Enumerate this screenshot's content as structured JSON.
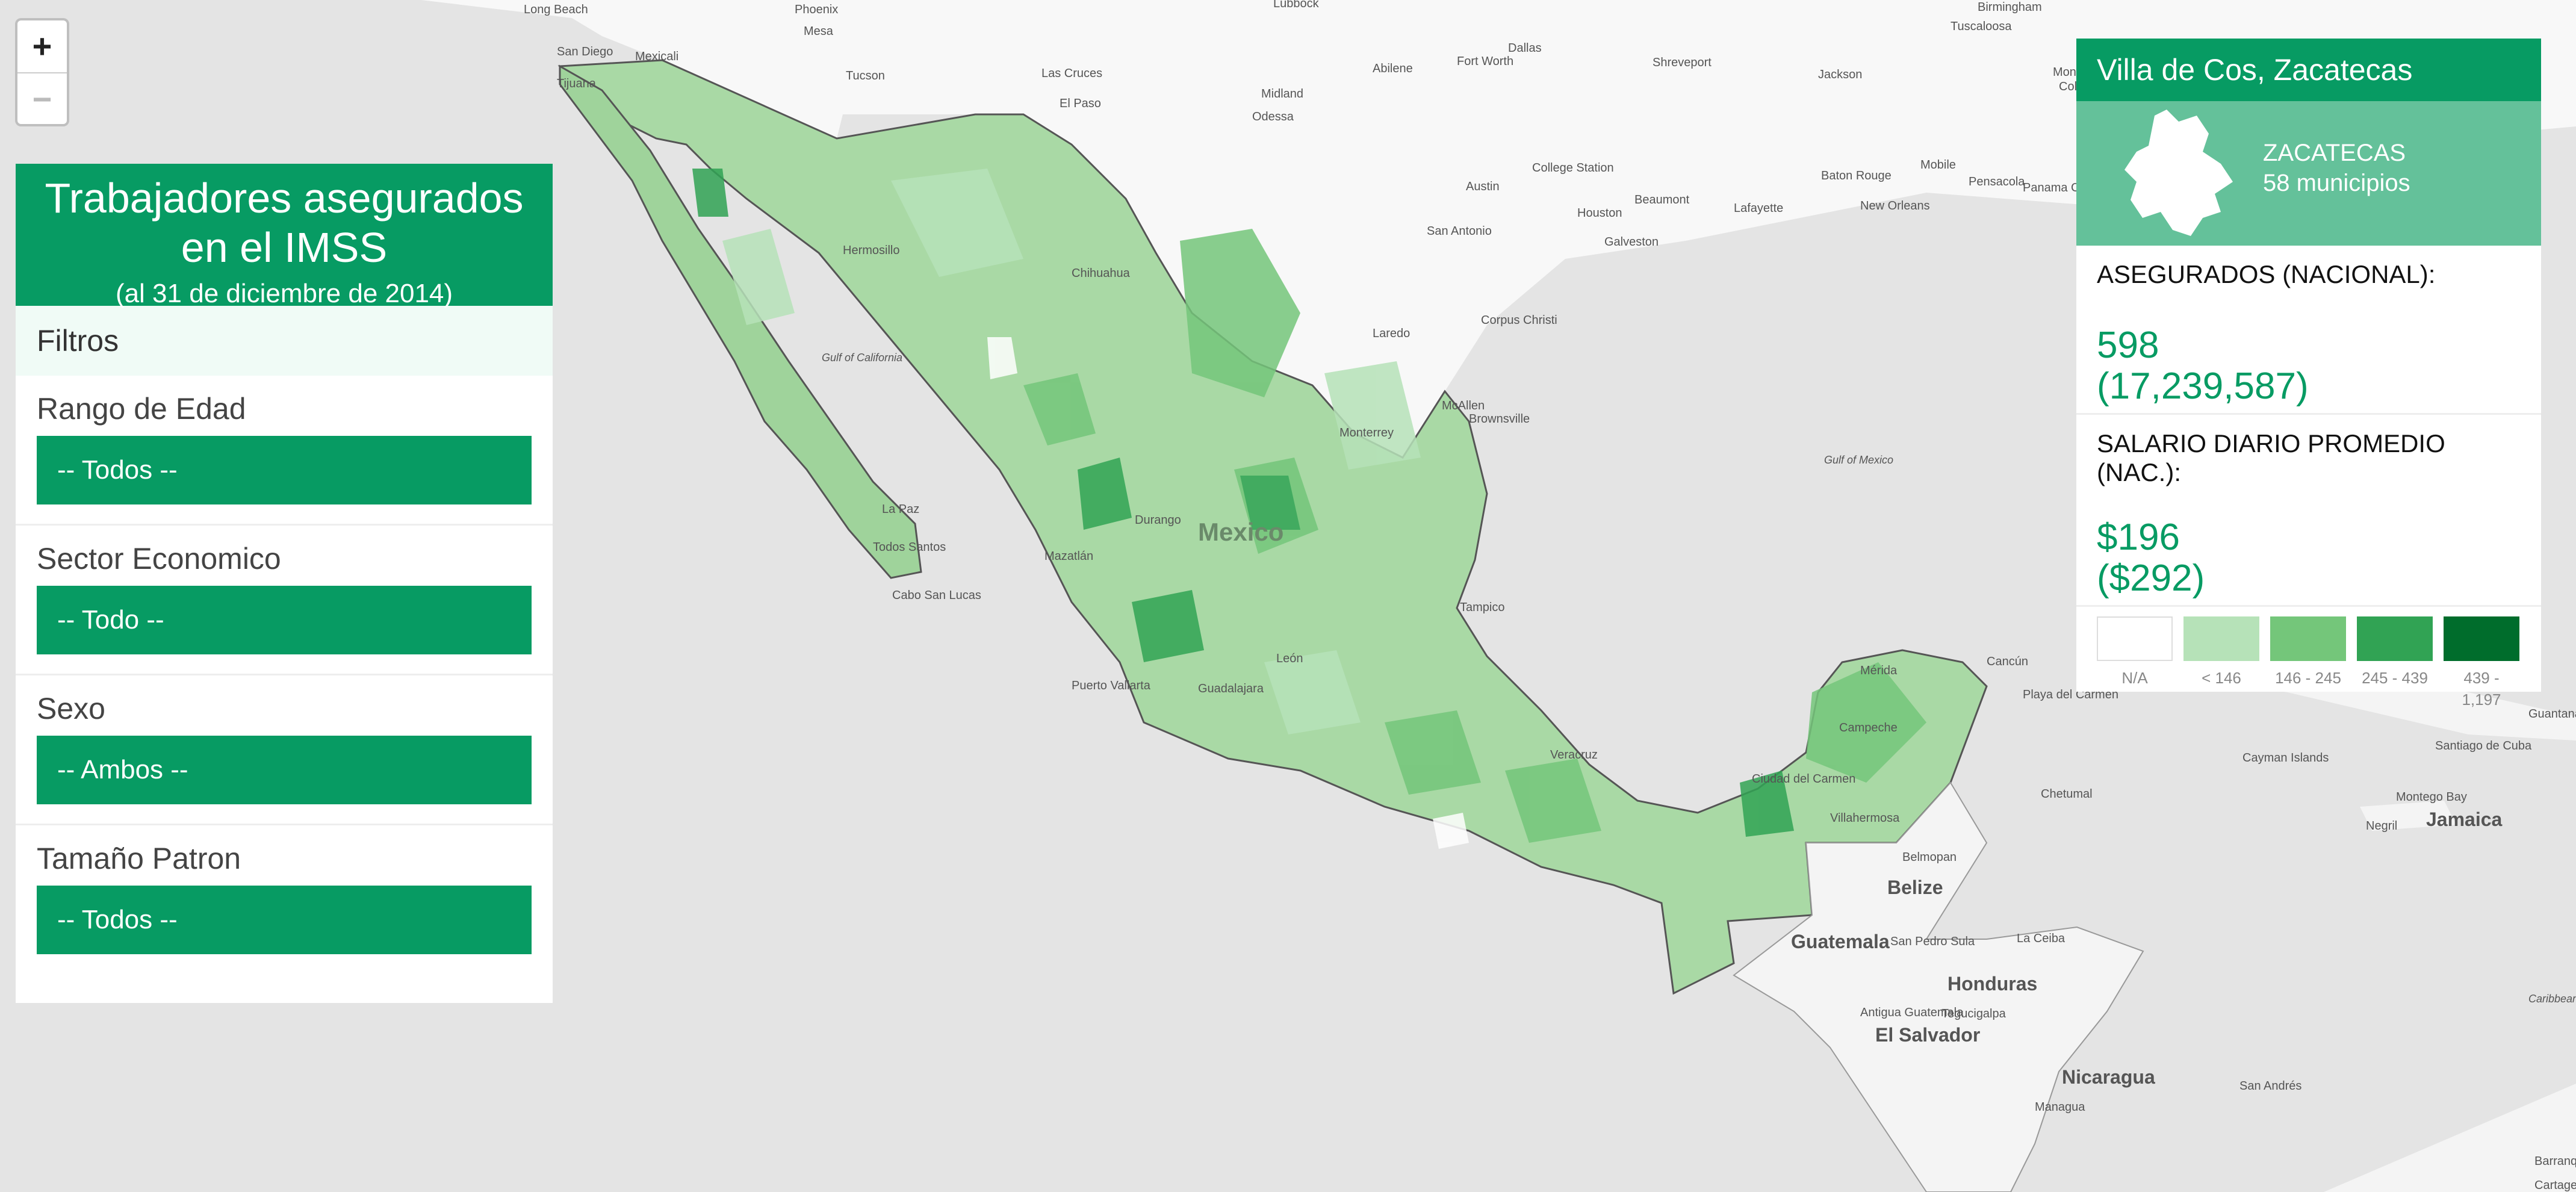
{
  "map": {
    "country_label": "Mexico",
    "places": [
      {
        "name": "Long Beach"
      },
      {
        "name": "San Diego"
      },
      {
        "name": "Mexicali"
      },
      {
        "name": "Tijuana"
      },
      {
        "name": "Phoenix"
      },
      {
        "name": "Mesa"
      },
      {
        "name": "Tucson"
      },
      {
        "name": "Lubbock"
      },
      {
        "name": "Las Cruces"
      },
      {
        "name": "El Paso"
      },
      {
        "name": "Midland"
      },
      {
        "name": "Odessa"
      },
      {
        "name": "Abilene"
      },
      {
        "name": "Fort Worth"
      },
      {
        "name": "Dallas"
      },
      {
        "name": "Shreveport"
      },
      {
        "name": "Jackson"
      },
      {
        "name": "Birmingham"
      },
      {
        "name": "Tuscaloosa"
      },
      {
        "name": "Montgomery"
      },
      {
        "name": "Columbus"
      },
      {
        "name": "Austin"
      },
      {
        "name": "College Station"
      },
      {
        "name": "San Antonio"
      },
      {
        "name": "Houston"
      },
      {
        "name": "Beaumont"
      },
      {
        "name": "Galveston"
      },
      {
        "name": "Baton Rouge"
      },
      {
        "name": "Lafayette"
      },
      {
        "name": "New Orleans"
      },
      {
        "name": "Mobile"
      },
      {
        "name": "Pensacola"
      },
      {
        "name": "Panama City Beach"
      },
      {
        "name": "Corpus Christi"
      },
      {
        "name": "Laredo"
      },
      {
        "name": "McAllen"
      },
      {
        "name": "Brownsville"
      },
      {
        "name": "Gulf of Mexico"
      },
      {
        "name": "Hermosillo"
      },
      {
        "name": "Chihuahua"
      },
      {
        "name": "Monterrey"
      },
      {
        "name": "Durango"
      },
      {
        "name": "Mazatlán"
      },
      {
        "name": "La Paz"
      },
      {
        "name": "Cabo San Lucas"
      },
      {
        "name": "Todos Santos"
      },
      {
        "name": "Gulf of California"
      },
      {
        "name": "Puerto Vallarta"
      },
      {
        "name": "Guadalajara"
      },
      {
        "name": "León"
      },
      {
        "name": "Tampico"
      },
      {
        "name": "Veracruz"
      },
      {
        "name": "Mérida"
      },
      {
        "name": "Cancún"
      },
      {
        "name": "Playa del Carmen"
      },
      {
        "name": "Campeche"
      },
      {
        "name": "Ciudad del Carmen"
      },
      {
        "name": "Chetumal"
      },
      {
        "name": "Villahermosa"
      },
      {
        "name": "Belmopan"
      },
      {
        "name": "Belize"
      },
      {
        "name": "Guatemala"
      },
      {
        "name": "San Pedro Sula"
      },
      {
        "name": "La Ceiba"
      },
      {
        "name": "Honduras"
      },
      {
        "name": "Tegucigalpa"
      },
      {
        "name": "El Salvador"
      },
      {
        "name": "Antigua Guatemala"
      },
      {
        "name": "Nicaragua"
      },
      {
        "name": "Managua"
      },
      {
        "name": "San Andrés"
      },
      {
        "name": "Cayman Islands"
      },
      {
        "name": "Montego Bay"
      },
      {
        "name": "Negril"
      },
      {
        "name": "Jamaica"
      },
      {
        "name": "Santiago de Cuba"
      },
      {
        "name": "Guantanamo"
      },
      {
        "name": "Caribbean Sea"
      },
      {
        "name": "Barranquilla"
      },
      {
        "name": "Cartagena"
      }
    ]
  },
  "zoom": {
    "in_label": "+",
    "out_label": "−"
  },
  "panel_left": {
    "title": "Trabajadores asegurados en el IMSS",
    "subtitle": "(al 31 de diciembre de 2014)",
    "filters_header": "Filtros",
    "filters": [
      {
        "label": "Rango de Edad",
        "value": "-- Todos --"
      },
      {
        "label": "Sector Economico",
        "value": "-- Todo --"
      },
      {
        "label": "Sexo",
        "value": "-- Ambos --"
      },
      {
        "label": "Tamaño Patron",
        "value": "-- Todos --"
      }
    ]
  },
  "panel_right": {
    "place": "Villa de Cos, Zacatecas",
    "state": "ZACATECAS",
    "state_municipalities": "58 municipios",
    "insured_label": "ASEGURADOS (NACIONAL):",
    "insured_value": "598",
    "insured_national": "(17,239,587)",
    "salary_label": "SALARIO DIARIO PROMEDIO (NAC.):",
    "salary_value": "$196",
    "salary_national": "($292)",
    "legend": [
      {
        "label": "N/A",
        "color": "#ffffff"
      },
      {
        "label": "< 146",
        "color": "#b6e2b8"
      },
      {
        "label": "146 - 245",
        "color": "#74c67a"
      },
      {
        "label": "245 - 439",
        "color": "#31a354"
      },
      {
        "label": "439 - 1,197",
        "color": "#006d2c"
      }
    ]
  }
}
